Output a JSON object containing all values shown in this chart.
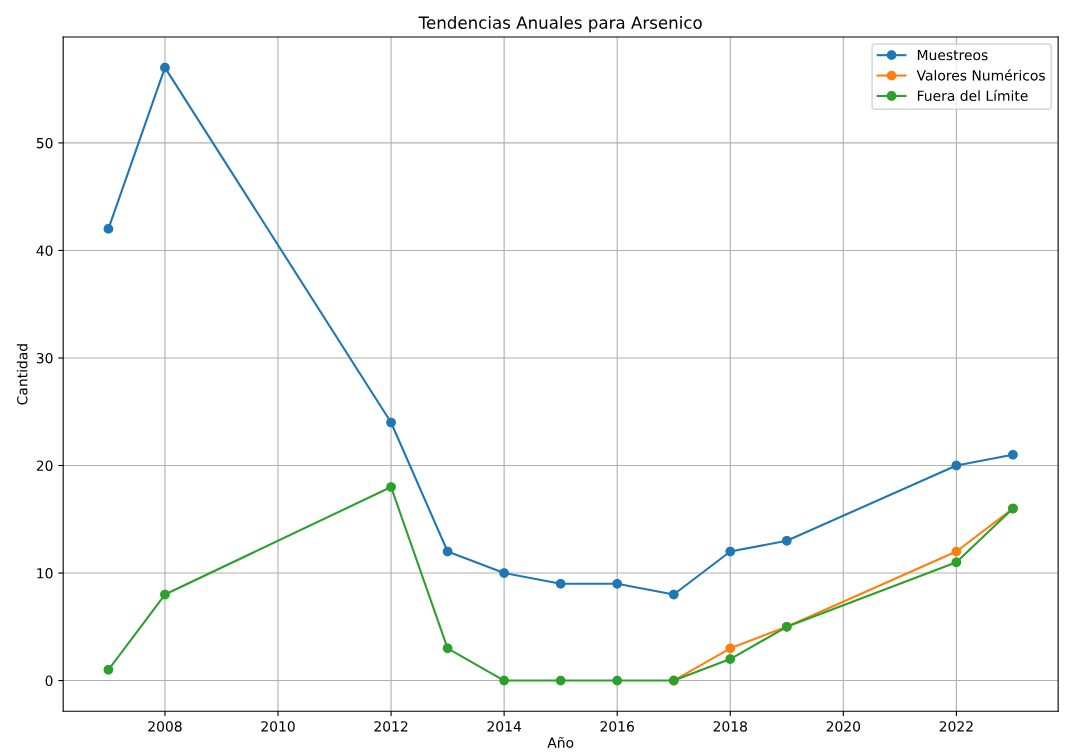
{
  "chart_data": {
    "type": "line",
    "title": "Tendencias Anuales para Arsenico",
    "xlabel": "Año",
    "ylabel": "Cantidad",
    "x": [
      2007,
      2008,
      2012,
      2013,
      2014,
      2015,
      2016,
      2017,
      2018,
      2019,
      2022,
      2023
    ],
    "series": [
      {
        "name": "Muestreos",
        "color": "#1f77b4",
        "values": [
          42,
          57,
          24,
          12,
          10,
          9,
          9,
          8,
          12,
          13,
          20,
          21
        ]
      },
      {
        "name": "Valores Numéricos",
        "color": "#ff7f0e",
        "values": [
          null,
          null,
          null,
          null,
          null,
          null,
          null,
          0,
          3,
          5,
          12,
          16
        ]
      },
      {
        "name": "Fuera del Límite",
        "color": "#2ca02c",
        "values": [
          1,
          8,
          18,
          3,
          0,
          0,
          0,
          0,
          2,
          5,
          11,
          16
        ]
      }
    ],
    "xlim": [
      2006.2,
      2023.8
    ],
    "xticks": [
      2008,
      2010,
      2012,
      2014,
      2016,
      2018,
      2020,
      2022
    ],
    "ylim": [
      -2.85,
      59.85
    ],
    "yticks": [
      0,
      10,
      20,
      30,
      40,
      50
    ],
    "grid": true,
    "legend": "top right",
    "marker": "circle",
    "line_style": "solid"
  }
}
